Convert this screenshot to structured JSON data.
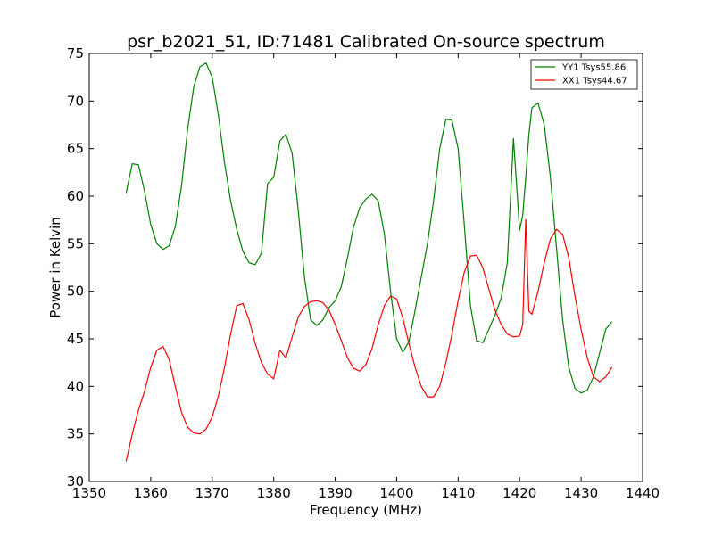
{
  "chart_data": {
    "type": "line",
    "title": "psr_b2021_51, ID:71481 Calibrated On-source spectrum",
    "xlabel": "Frequency (MHz)",
    "ylabel": "Power in Kelvin",
    "xlim": [
      1350,
      1440
    ],
    "ylim": [
      30,
      75
    ],
    "xticks": [
      1350,
      1360,
      1370,
      1380,
      1390,
      1400,
      1410,
      1420,
      1430,
      1440
    ],
    "yticks": [
      30,
      35,
      40,
      45,
      50,
      55,
      60,
      65,
      70,
      75
    ],
    "grid": false,
    "legend_position": "top-right",
    "series": [
      {
        "name": "YY1 Tsys55.86",
        "color": "#008000",
        "x": [
          1356,
          1357,
          1358,
          1359,
          1360,
          1361,
          1362,
          1363,
          1364,
          1365,
          1366,
          1367,
          1368,
          1369,
          1370,
          1371,
          1372,
          1373,
          1374,
          1375,
          1376,
          1377,
          1378,
          1379,
          1380,
          1381,
          1382,
          1383,
          1384,
          1385,
          1386,
          1387,
          1388,
          1389,
          1390,
          1391,
          1392,
          1393,
          1394,
          1395,
          1396,
          1397,
          1398,
          1399,
          1400,
          1401,
          1402,
          1403,
          1404,
          1405,
          1406,
          1407,
          1408,
          1409,
          1410,
          1411,
          1412,
          1413,
          1414,
          1415,
          1416,
          1417,
          1418,
          1419,
          1420,
          1420.5,
          1421,
          1421.5,
          1422,
          1423,
          1424,
          1425,
          1426,
          1427,
          1428,
          1429,
          1430,
          1431,
          1432,
          1433,
          1434,
          1435
        ],
        "y": [
          60.3,
          63.4,
          63.3,
          60.5,
          57.0,
          55.0,
          54.4,
          54.8,
          56.8,
          61.0,
          67.0,
          71.5,
          73.6,
          74.0,
          72.5,
          68.5,
          63.5,
          59.5,
          56.5,
          54.2,
          53.0,
          52.8,
          54.0,
          61.3,
          62.0,
          65.8,
          66.5,
          64.5,
          58.5,
          51.5,
          47.0,
          46.4,
          47.0,
          48.3,
          49.0,
          50.5,
          53.5,
          56.8,
          58.8,
          59.7,
          60.2,
          59.5,
          56.0,
          50.0,
          45.0,
          43.6,
          44.7,
          48.0,
          51.5,
          55.0,
          59.5,
          65.0,
          68.1,
          68.0,
          65.0,
          57.0,
          48.5,
          44.8,
          44.6,
          46.0,
          47.5,
          49.3,
          53.0,
          66.1,
          56.4,
          58.0,
          62.0,
          66.5,
          69.3,
          69.8,
          67.5,
          62.0,
          54.5,
          47.0,
          42.0,
          39.8,
          39.3,
          39.6,
          41.0,
          43.5,
          46.0,
          46.8
        ]
      },
      {
        "name": "XX1 Tsys44.67",
        "color": "#ff0000",
        "x": [
          1356,
          1357,
          1358,
          1359,
          1360,
          1361,
          1362,
          1363,
          1364,
          1365,
          1366,
          1367,
          1368,
          1369,
          1370,
          1371,
          1372,
          1373,
          1374,
          1375,
          1376,
          1377,
          1378,
          1379,
          1380,
          1381,
          1382,
          1383,
          1384,
          1385,
          1386,
          1387,
          1388,
          1389,
          1390,
          1391,
          1392,
          1393,
          1394,
          1395,
          1396,
          1397,
          1398,
          1399,
          1400,
          1401,
          1402,
          1403,
          1404,
          1405,
          1406,
          1407,
          1408,
          1409,
          1410,
          1411,
          1412,
          1413,
          1414,
          1415,
          1416,
          1417,
          1418,
          1419,
          1420,
          1420.5,
          1421,
          1421.5,
          1422,
          1423,
          1424,
          1425,
          1426,
          1427,
          1428,
          1429,
          1430,
          1431,
          1432,
          1433,
          1434,
          1435
        ],
        "y": [
          32.1,
          35.0,
          37.5,
          39.5,
          42.0,
          43.8,
          44.2,
          42.8,
          40.0,
          37.3,
          35.7,
          35.1,
          35.0,
          35.5,
          36.8,
          39.0,
          42.0,
          45.5,
          48.5,
          48.7,
          47.0,
          44.5,
          42.5,
          41.3,
          40.8,
          43.8,
          43.0,
          45.2,
          47.3,
          48.4,
          48.9,
          49.0,
          48.8,
          48.0,
          46.5,
          44.8,
          43.0,
          41.9,
          41.6,
          42.3,
          44.0,
          46.5,
          48.5,
          49.5,
          49.2,
          47.2,
          44.5,
          42.0,
          40.0,
          38.9,
          38.9,
          40.0,
          42.5,
          45.5,
          49.0,
          52.0,
          53.7,
          53.8,
          52.5,
          50.2,
          48.0,
          46.5,
          45.5,
          45.2,
          45.3,
          46.5,
          57.6,
          47.9,
          47.6,
          50.0,
          53.0,
          55.5,
          56.5,
          56.0,
          53.5,
          49.5,
          46.0,
          43.0,
          41.0,
          40.5,
          41.0,
          42.0
        ]
      }
    ]
  }
}
